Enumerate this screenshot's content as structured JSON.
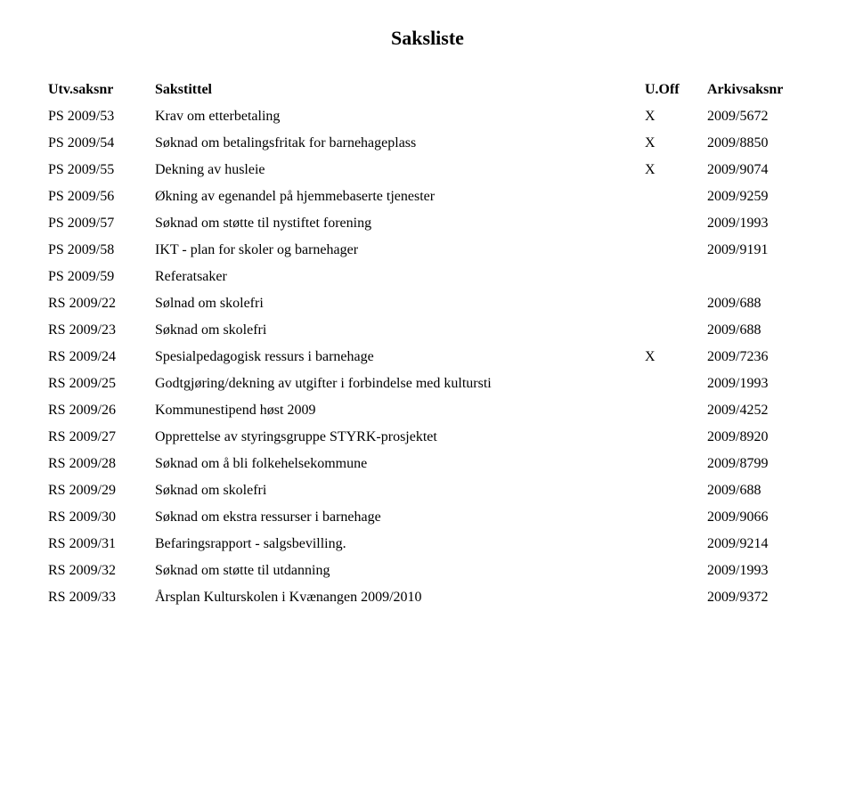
{
  "title": "Saksliste",
  "headers": {
    "utv": "Utv.saksnr",
    "tittel": "Sakstittel",
    "uoff": "U.Off",
    "arkiv": "Arkivsaksnr"
  },
  "rows": [
    {
      "saksnr": "PS 2009/53",
      "tittel": "Krav om etterbetaling",
      "uoff": "X",
      "arkiv": "2009/5672"
    },
    {
      "saksnr": "PS 2009/54",
      "tittel": "Søknad om betalingsfritak for barnehageplass",
      "uoff": "X",
      "arkiv": "2009/8850"
    },
    {
      "saksnr": "PS 2009/55",
      "tittel": "Dekning av husleie",
      "uoff": "X",
      "arkiv": "2009/9074"
    },
    {
      "saksnr": "PS 2009/56",
      "tittel": "Økning av egenandel på hjemmebaserte tjenester",
      "uoff": "",
      "arkiv": "2009/9259"
    },
    {
      "saksnr": "PS 2009/57",
      "tittel": "Søknad om støtte til nystiftet forening",
      "uoff": "",
      "arkiv": "2009/1993"
    },
    {
      "saksnr": "PS 2009/58",
      "tittel": "IKT - plan for skoler og barnehager",
      "uoff": "",
      "arkiv": "2009/9191"
    },
    {
      "saksnr": "PS 2009/59",
      "tittel": "Referatsaker",
      "uoff": "",
      "arkiv": ""
    },
    {
      "saksnr": "RS 2009/22",
      "tittel": "Sølnad om skolefri",
      "uoff": "",
      "arkiv": "2009/688"
    },
    {
      "saksnr": "RS 2009/23",
      "tittel": "Søknad om skolefri",
      "uoff": "",
      "arkiv": "2009/688"
    },
    {
      "saksnr": "RS 2009/24",
      "tittel": "Spesialpedagogisk ressurs i barnehage",
      "uoff": "X",
      "arkiv": "2009/7236"
    },
    {
      "saksnr": "RS 2009/25",
      "tittel": "Godtgjøring/dekning av utgifter i forbindelse med kultursti",
      "uoff": "",
      "arkiv": "2009/1993"
    },
    {
      "saksnr": "RS 2009/26",
      "tittel": "Kommunestipend høst 2009",
      "uoff": "",
      "arkiv": "2009/4252"
    },
    {
      "saksnr": "RS 2009/27",
      "tittel": "Opprettelse av styringsgruppe STYRK-prosjektet",
      "uoff": "",
      "arkiv": "2009/8920"
    },
    {
      "saksnr": "RS 2009/28",
      "tittel": "Søknad om å bli folkehelsekommune",
      "uoff": "",
      "arkiv": "2009/8799"
    },
    {
      "saksnr": "RS 2009/29",
      "tittel": "Søknad om skolefri",
      "uoff": "",
      "arkiv": "2009/688"
    },
    {
      "saksnr": "RS 2009/30",
      "tittel": "Søknad om ekstra ressurser i barnehage",
      "uoff": "",
      "arkiv": "2009/9066"
    },
    {
      "saksnr": "RS 2009/31",
      "tittel": "Befaringsrapport - salgsbevilling.",
      "uoff": "",
      "arkiv": "2009/9214"
    },
    {
      "saksnr": "RS 2009/32",
      "tittel": "Søknad om støtte til utdanning",
      "uoff": "",
      "arkiv": "2009/1993"
    },
    {
      "saksnr": "RS 2009/33",
      "tittel": "Årsplan Kulturskolen i Kvænangen 2009/2010",
      "uoff": "",
      "arkiv": "2009/9372"
    }
  ]
}
